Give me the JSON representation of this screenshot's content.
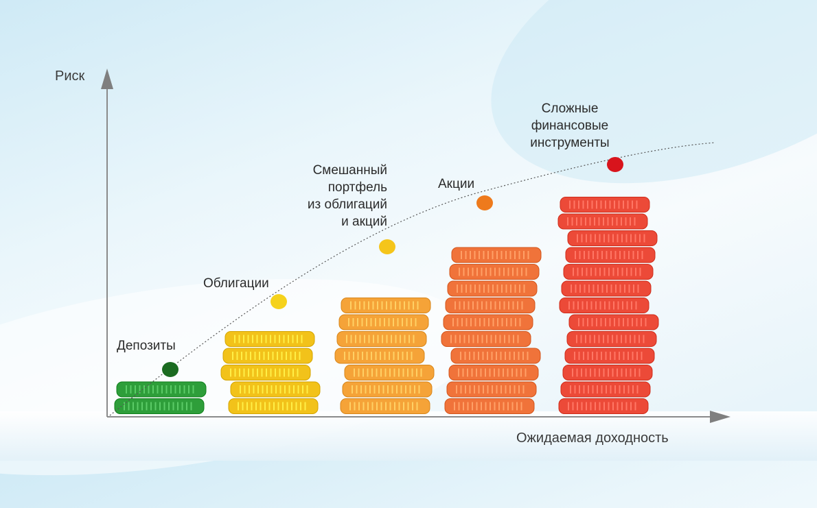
{
  "axes": {
    "y_label": "Риск",
    "x_label": "Ожидаемая доходность"
  },
  "categories": [
    {
      "label": "Депозиты",
      "color": "#2e9e3a",
      "dot_color": "#1b6b21",
      "stack_count": 2
    },
    {
      "label": "Облигации",
      "color": "#f2c21a",
      "dot_color": "#f5d21c",
      "stack_count": 5
    },
    {
      "label": "Смешанный\nпортфель\nиз облигаций\nи акций",
      "color": "#f5a338",
      "dot_color": "#f5c51a",
      "stack_count": 7
    },
    {
      "label": "Акции",
      "color": "#f0733a",
      "dot_color": "#ee7a1c",
      "stack_count": 10
    },
    {
      "label": "Сложные\nфинансовые\nинструменты",
      "color": "#ec4a38",
      "dot_color": "#d8141c",
      "stack_count": 13
    }
  ]
}
